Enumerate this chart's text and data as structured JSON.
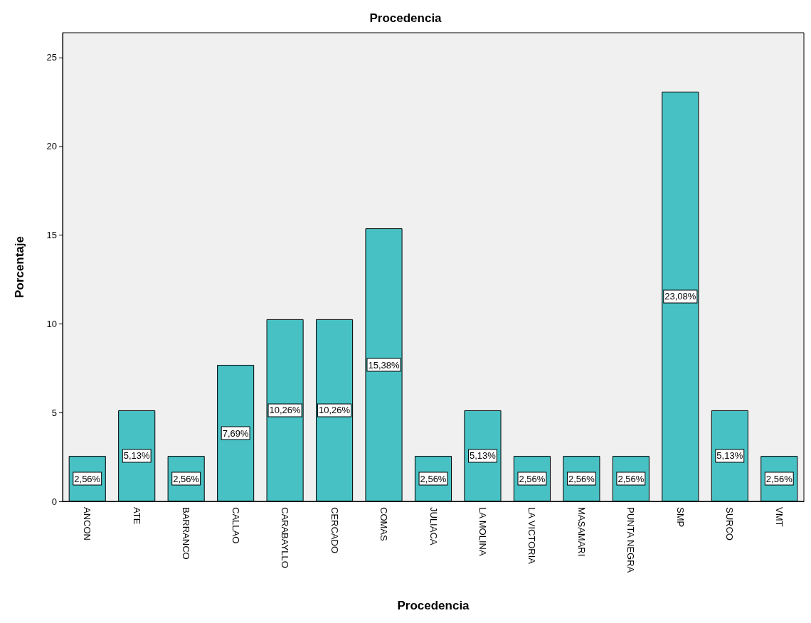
{
  "chart_data": {
    "type": "bar",
    "title": "Procedencia",
    "xlabel": "Procedencia",
    "ylabel": "Porcentaje",
    "categories": [
      "ANCON",
      "ATE",
      "BARRANCO",
      "CALLAO",
      "CARABAYLLO",
      "CERCADO",
      "COMAS",
      "JULIACA",
      "LA MOLINA",
      "LA VICTORIA",
      "MASAMARI",
      "PUNTA NEGRA",
      "SMP",
      "SURCO",
      "VMT"
    ],
    "values": [
      2.56,
      5.13,
      2.56,
      7.69,
      10.26,
      10.26,
      15.38,
      2.56,
      5.13,
      2.56,
      2.56,
      2.56,
      23.08,
      5.13,
      2.56
    ],
    "value_labels": [
      "2,56%",
      "5,13%",
      "2,56%",
      "7,69%",
      "10,26%",
      "10,26%",
      "15,38%",
      "2,56%",
      "5,13%",
      "2,56%",
      "2,56%",
      "2,56%",
      "23,08%",
      "5,13%",
      "2,56%"
    ],
    "color": "#48c1c4",
    "ylim": [
      0,
      26.4
    ],
    "yticks": [
      0,
      5,
      10,
      15,
      20,
      25
    ],
    "grid": false
  }
}
